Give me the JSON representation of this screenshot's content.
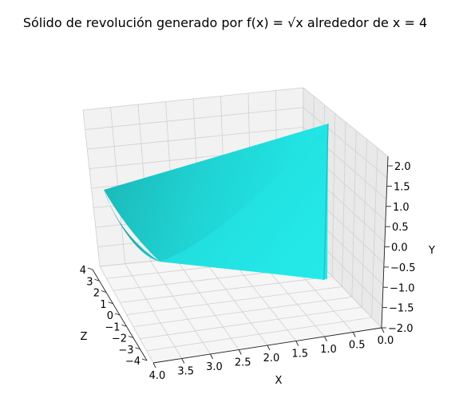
{
  "chart_data": {
    "type": "surface",
    "title": "Sólido de revolución generado por f(x) = √x alrededor de x = 4",
    "xlabel": "X",
    "ylabel": "Y",
    "zlabel": "Z",
    "x_ticks": [
      "0.0",
      "0.5",
      "1.0",
      "1.5",
      "2.0",
      "2.5",
      "3.0",
      "3.5",
      "4.0"
    ],
    "y_ticks": [
      "−2.0",
      "−1.5",
      "−1.0",
      "−0.5",
      "0.0",
      "0.5",
      "1.0",
      "1.5",
      "2.0"
    ],
    "z_ticks": [
      "−4",
      "−3",
      "−2",
      "−1",
      "0",
      "1",
      "2",
      "3",
      "4"
    ],
    "xlim": [
      0,
      4
    ],
    "ylim": [
      -2,
      2
    ],
    "zlim": [
      -4,
      4
    ],
    "function": "y = sqrt(x), revolved about x = 4",
    "surface_color": "#22e2e2",
    "grid": true
  }
}
